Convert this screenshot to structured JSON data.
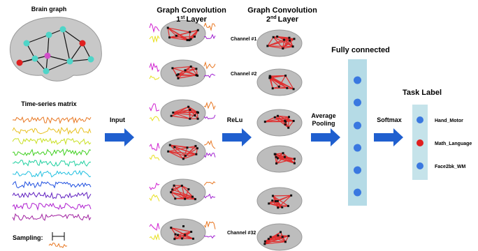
{
  "brain_graph": {
    "title": "Brain graph"
  },
  "time_series": {
    "title": "Time-series matrix",
    "sampling": "Sampling:"
  },
  "steps": {
    "input": "Input",
    "relu": "ReLu",
    "pooling": [
      "Average",
      "Pooling"
    ],
    "softmax": "Softmax"
  },
  "layer1": {
    "title": "Graph Convolution",
    "number": "1",
    "suffix": "st",
    "rest": "Layer"
  },
  "layer2": {
    "title": "Graph Convolution",
    "number": "2",
    "suffix": "nd",
    "rest": "Layer",
    "channels": [
      "Channel #1",
      "Channel #2",
      "Channel #32"
    ]
  },
  "fully_connected": {
    "title": "Fully connected"
  },
  "task_label": {
    "title": "Task Label",
    "labels": [
      "Hand_Motor",
      "Math_Language",
      "Face2bk_WM"
    ]
  }
}
